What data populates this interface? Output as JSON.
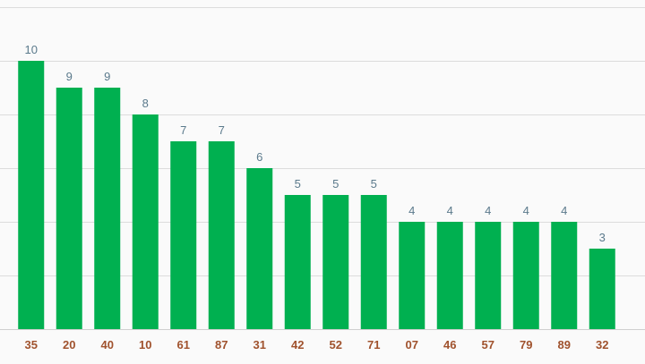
{
  "chart_data": {
    "type": "bar",
    "categories": [
      "35",
      "20",
      "40",
      "10",
      "61",
      "87",
      "31",
      "42",
      "52",
      "71",
      "07",
      "46",
      "57",
      "79",
      "89",
      "32"
    ],
    "values": [
      10,
      9,
      9,
      8,
      7,
      7,
      6,
      5,
      5,
      5,
      4,
      4,
      4,
      4,
      4,
      3
    ],
    "ylim": [
      0,
      12
    ],
    "grid": true,
    "data_labels": true,
    "colors": {
      "bar": "#00b050",
      "value_label": "#5b7a8c",
      "category_label": "#a0522d",
      "grid": "#dcdcdc"
    }
  }
}
